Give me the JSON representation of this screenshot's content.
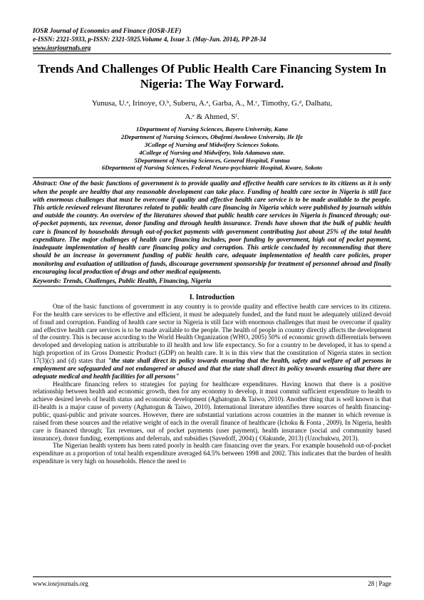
{
  "header": {
    "journal": "IOSR Journal of Economics and Finance (IOSR-JEF)",
    "issn": "e-ISSN: 2321-5933, p-ISSN: 2321-5925.Volume 4, Issue 3. (May-Jun. 2014), PP 28-34",
    "url": "www.iosrjournals.org"
  },
  "title": "Trends And Challenges Of Public Health Care Financing System In Nigeria: The Way Forward.",
  "authors_line1": "Yunusa, U.ᵃ, Irinoye, O.ᵇ, Suberu, A.ᵃ, Garba, A., M.ᶜ,  Timothy, G.ᵈ, Dalhatu,",
  "authors_line2": "A.ᵉ  & Ahmed, Sᶠ.",
  "affiliations": [
    "1Department of Nursing Sciences, Bayero University, Kano",
    "2Department of Nursing Sciences, Obafemi Awolowo University, Ile Ife",
    "3College of Nursing and Midwifery Sciences Sokoto.",
    "4College of Nursing and Midwifery, Yola Adamawa state.",
    "5Department of Nursing Sciences, General Hospital, Funtua",
    "6Department of Nursing Sciences, Federal Neuro-psychiatric Hospital, Kware, Sokoto"
  ],
  "abstract": "One of the basic functions of government is to provide quality and effective health care services to its citizens as it is only when the people are healthy that any reasonable development can take place. Funding of health care sector in Nigeria is still face with enormous challenges that must be overcome if quality and effective health care service is to be made available to the people. This article reviewed relevant literatures related to public health care financing in Nigeria which were published by journals within and outside the country. An overview of the literatures showed that public health care services in Nigeria is financed through; out-of-pocket payments, tax revenue, donor funding and through health insurance. Trends have shown that the bulk of public health care is financed by households through out-of-pocket payments with government contributing just about 25% of the total health expenditure. The major challenges of health care financing includes, poor funding by government, high out of pocket payment, inadequate implementation of health care financing policy and corruption. This article concluded by recommending that there should be an increase in government funding of public health care, adequate implementation of health care policies, proper monitoring and evaluation of utilization of funds, discourage government sponsorship for treatment of personnel abroad and finally encouraging local production of drugs and other medical equipments.",
  "keywords": "Trends, Challenges, Public Health, Financing, Nigeria",
  "section_heading": "I.     Introduction",
  "para1_a": "One of the basic functions of government in any country is to provide quality and effective health care services to its citizens. For the health care services to be effective and efficient, it must be adequately funded, and the fund must be adequately utilized devoid of fraud and corruption. Funding of health care sector in Nigeria is still face with enormous challenges that must be overcome if quality and effective health care services is to be made available to the people. The health of people in country directly affects the development of the country. This is because according to the World Health Organization (WHO, 2005) 50%  of economic growth differentials between developed and developing nation is attributable to ill health and low life expectancy. So for a country to be developed, it has to spend a high proportion of its Gross Domestic Product (GDP) on health care. It is in this view that the constitution of Nigeria states in section 17(3)(c) and (d) states that ",
  "para1_ital": "\"the state shall direct its policy towards ensuring that the health, safety and welfare of all persons in employment are safeguarded and not endangered or abused and that the state shall direct its policy towards ensuring that there are adequate medical and health facilities for all persons\"",
  "para2": "Healthcare financing refers to strategies for paying for healthcare expenditures. Having known that there is a positive relationship between health and economic growth, then for any economy to develop, it must commit sufficient expenditure to health to achieve desired levels of health status and economic development (Aghatogun & Taiwo, 2010). Another thing that is well known is that ill-health is a major cause of poverty (Aghatogun & Taiwo, 2010). International literature identifies three sources of health financing-public, quasi-public and private sources. However, there are substantial variations across countries in the manner in which revenue is raised from these sources and the relative weight of each in the overall finance of healthcare (Ichoku & Fonta , 2009). In Nigeria, health care is financed through; Tax revenues, out of pocket payments (user payment), health insurance (social and community based insurance), donor funding, exemptions and deferrals, and subsidies (Savedoff, 2004) ( Olakunde, 2013) (Uzochukwu, 2013).",
  "para3": "The Nigerian health system has been rated poorly in health care financing over the years. For example household out-of-pocket expenditure as a proportion of total health expenditure averaged 64.5% between 1998 and 2002. This indicates that the burden of health expenditure is very high on households. Hence the need to",
  "footer": {
    "left": "www.iosrjournals.org",
    "right": "28 | Page"
  }
}
